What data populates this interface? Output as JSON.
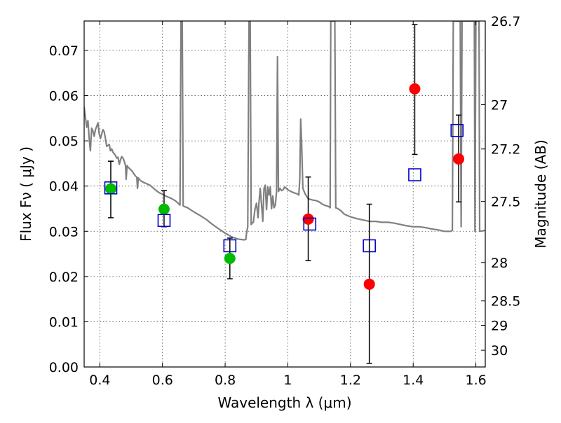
{
  "chart_data": {
    "type": "scatter",
    "xlabel": "Wavelength  λ (μm)",
    "ylabel": "Flux  Fν  ( μJy )",
    "y2label": "Magnitude (AB)",
    "xlim": [
      0.35,
      1.63
    ],
    "ylim": [
      0.0,
      0.0765
    ],
    "grid": true,
    "x_ticks": [
      0.4,
      0.6,
      0.8,
      1.0,
      1.2,
      1.4,
      1.6
    ],
    "x_tick_labels": [
      "0.4",
      "0.6",
      "0.8",
      "1",
      "1.2",
      "1.4",
      "1.6"
    ],
    "y_ticks": [
      0.0,
      0.01,
      0.02,
      0.03,
      0.04,
      0.05,
      0.06,
      0.07
    ],
    "y_tick_labels": [
      "0.00",
      "0.01",
      "0.02",
      "0.03",
      "0.04",
      "0.05",
      "0.06",
      "0.07"
    ],
    "y2_ticks": [
      {
        "label": "26.7",
        "flux": 0.0765
      },
      {
        "label": "27",
        "flux": 0.058
      },
      {
        "label": "27.2",
        "flux": 0.0482
      },
      {
        "label": "27.5",
        "flux": 0.0366
      },
      {
        "label": "28",
        "flux": 0.0231
      },
      {
        "label": "28.5",
        "flux": 0.0146
      },
      {
        "label": "29",
        "flux": 0.0092
      },
      {
        "label": "30",
        "flux": 0.0037
      }
    ],
    "series": [
      {
        "marker": "circle",
        "color": "#00bb00",
        "points": [
          {
            "x": 0.435,
            "y": 0.0394,
            "yerr_low": 0.033,
            "yerr_high": 0.0455
          },
          {
            "x": 0.605,
            "y": 0.0349,
            "yerr_low": 0.031,
            "yerr_high": 0.039
          },
          {
            "x": 0.815,
            "y": 0.024,
            "yerr_low": 0.0195,
            "yerr_high": 0.0285
          }
        ]
      },
      {
        "marker": "circle",
        "color": "#ff0000",
        "points": [
          {
            "x": 1.065,
            "y": 0.0327,
            "yerr_low": 0.0235,
            "yerr_high": 0.042
          },
          {
            "x": 1.26,
            "y": 0.0183,
            "yerr_low": 0.0008,
            "yerr_high": 0.036
          },
          {
            "x": 1.405,
            "y": 0.0615,
            "yerr_low": 0.047,
            "yerr_high": 0.0757
          },
          {
            "x": 1.545,
            "y": 0.046,
            "yerr_low": 0.0365,
            "yerr_high": 0.0557
          }
        ]
      },
      {
        "marker": "open-square",
        "color": "#0000cc",
        "points": [
          {
            "x": 0.435,
            "y": 0.0396
          },
          {
            "x": 0.605,
            "y": 0.0324
          },
          {
            "x": 0.815,
            "y": 0.0268
          },
          {
            "x": 1.07,
            "y": 0.0316
          },
          {
            "x": 1.26,
            "y": 0.0268
          },
          {
            "x": 1.405,
            "y": 0.0425
          },
          {
            "x": 1.54,
            "y": 0.0523
          }
        ]
      },
      {
        "marker": "line",
        "color": "#808080",
        "points": [
          [
            0.35,
            0.0575
          ],
          [
            0.358,
            0.053
          ],
          [
            0.362,
            0.0545
          ],
          [
            0.366,
            0.0505
          ],
          [
            0.37,
            0.0478
          ],
          [
            0.374,
            0.0528
          ],
          [
            0.378,
            0.0522
          ],
          [
            0.382,
            0.051
          ],
          [
            0.386,
            0.0525
          ],
          [
            0.39,
            0.0532
          ],
          [
            0.394,
            0.054
          ],
          [
            0.398,
            0.0515
          ],
          [
            0.402,
            0.0505
          ],
          [
            0.406,
            0.0515
          ],
          [
            0.41,
            0.0525
          ],
          [
            0.414,
            0.052
          ],
          [
            0.418,
            0.0505
          ],
          [
            0.422,
            0.0488
          ],
          [
            0.426,
            0.049
          ],
          [
            0.43,
            0.0492
          ],
          [
            0.434,
            0.0478
          ],
          [
            0.438,
            0.0482
          ],
          [
            0.442,
            0.0475
          ],
          [
            0.448,
            0.047
          ],
          [
            0.454,
            0.0462
          ],
          [
            0.458,
            0.0464
          ],
          [
            0.462,
            0.0448
          ],
          [
            0.466,
            0.0458
          ],
          [
            0.47,
            0.0465
          ],
          [
            0.474,
            0.0462
          ],
          [
            0.478,
            0.0455
          ],
          [
            0.482,
            0.0445
          ],
          [
            0.484,
            0.0415
          ],
          [
            0.487,
            0.0445
          ],
          [
            0.49,
            0.0442
          ],
          [
            0.496,
            0.0438
          ],
          [
            0.502,
            0.0434
          ],
          [
            0.508,
            0.0428
          ],
          [
            0.514,
            0.0422
          ],
          [
            0.518,
            0.042
          ],
          [
            0.52,
            0.0395
          ],
          [
            0.523,
            0.0418
          ],
          [
            0.53,
            0.0412
          ],
          [
            0.54,
            0.0408
          ],
          [
            0.55,
            0.0405
          ],
          [
            0.56,
            0.0402
          ],
          [
            0.57,
            0.0396
          ],
          [
            0.58,
            0.039
          ],
          [
            0.59,
            0.0385
          ],
          [
            0.6,
            0.0382
          ],
          [
            0.61,
            0.0378
          ],
          [
            0.62,
            0.0375
          ],
          [
            0.63,
            0.0372
          ],
          [
            0.64,
            0.0368
          ],
          [
            0.65,
            0.0362
          ],
          [
            0.656,
            0.0358
          ],
          [
            0.659,
            0.0765
          ],
          [
            0.663,
            0.0765
          ],
          [
            0.666,
            0.0356
          ],
          [
            0.68,
            0.0352
          ],
          [
            0.7,
            0.0343
          ],
          [
            0.72,
            0.0335
          ],
          [
            0.74,
            0.0326
          ],
          [
            0.76,
            0.0315
          ],
          [
            0.78,
            0.0305
          ],
          [
            0.8,
            0.0296
          ],
          [
            0.82,
            0.0288
          ],
          [
            0.84,
            0.0283
          ],
          [
            0.86,
            0.0281
          ],
          [
            0.866,
            0.0282
          ],
          [
            0.868,
            0.0295
          ],
          [
            0.872,
            0.031
          ],
          [
            0.876,
            0.0765
          ],
          [
            0.88,
            0.0765
          ],
          [
            0.883,
            0.0315
          ],
          [
            0.886,
            0.0318
          ],
          [
            0.89,
            0.032
          ],
          [
            0.895,
            0.0348
          ],
          [
            0.9,
            0.0362
          ],
          [
            0.905,
            0.033
          ],
          [
            0.908,
            0.0365
          ],
          [
            0.912,
            0.0395
          ],
          [
            0.916,
            0.036
          ],
          [
            0.92,
            0.0322
          ],
          [
            0.924,
            0.0395
          ],
          [
            0.928,
            0.0402
          ],
          [
            0.932,
            0.0348
          ],
          [
            0.936,
            0.0398
          ],
          [
            0.94,
            0.038
          ],
          [
            0.944,
            0.0398
          ],
          [
            0.948,
            0.035
          ],
          [
            0.952,
            0.0378
          ],
          [
            0.956,
            0.0352
          ],
          [
            0.96,
            0.0358
          ],
          [
            0.964,
            0.0388
          ],
          [
            0.967,
            0.0686
          ],
          [
            0.97,
            0.0388
          ],
          [
            0.975,
            0.0395
          ],
          [
            0.98,
            0.039
          ],
          [
            0.985,
            0.0392
          ],
          [
            0.99,
            0.0398
          ],
          [
            1.0,
            0.0392
          ],
          [
            1.01,
            0.0388
          ],
          [
            1.02,
            0.0385
          ],
          [
            1.03,
            0.0383
          ],
          [
            1.035,
            0.038
          ],
          [
            1.038,
            0.0415
          ],
          [
            1.041,
            0.0548
          ],
          [
            1.044,
            0.0498
          ],
          [
            1.048,
            0.0395
          ],
          [
            1.055,
            0.0383
          ],
          [
            1.065,
            0.0372
          ],
          [
            1.08,
            0.0369
          ],
          [
            1.09,
            0.0368
          ],
          [
            1.1,
            0.0365
          ],
          [
            1.11,
            0.036
          ],
          [
            1.12,
            0.0357
          ],
          [
            1.13,
            0.0355
          ],
          [
            1.135,
            0.0352
          ],
          [
            1.137,
            0.0765
          ],
          [
            1.15,
            0.0765
          ],
          [
            1.153,
            0.0352
          ],
          [
            1.16,
            0.035
          ],
          [
            1.17,
            0.0345
          ],
          [
            1.18,
            0.0338
          ],
          [
            1.19,
            0.0335
          ],
          [
            1.2,
            0.0332
          ],
          [
            1.22,
            0.0328
          ],
          [
            1.24,
            0.0325
          ],
          [
            1.26,
            0.0322
          ],
          [
            1.28,
            0.0322
          ],
          [
            1.3,
            0.032
          ],
          [
            1.32,
            0.032
          ],
          [
            1.34,
            0.0318
          ],
          [
            1.36,
            0.0315
          ],
          [
            1.38,
            0.0312
          ],
          [
            1.4,
            0.031
          ],
          [
            1.42,
            0.031
          ],
          [
            1.44,
            0.0308
          ],
          [
            1.46,
            0.0305
          ],
          [
            1.48,
            0.0303
          ],
          [
            1.5,
            0.03
          ],
          [
            1.52,
            0.03
          ],
          [
            1.525,
            0.0302
          ],
          [
            1.528,
            0.0765
          ],
          [
            1.55,
            0.0765
          ],
          [
            1.553,
            0.031
          ],
          [
            1.556,
            0.0765
          ],
          [
            1.595,
            0.0765
          ],
          [
            1.597,
            0.03
          ],
          [
            1.6,
            0.0765
          ],
          [
            1.61,
            0.0765
          ],
          [
            1.612,
            0.03
          ],
          [
            1.63,
            0.0302
          ]
        ]
      }
    ]
  }
}
